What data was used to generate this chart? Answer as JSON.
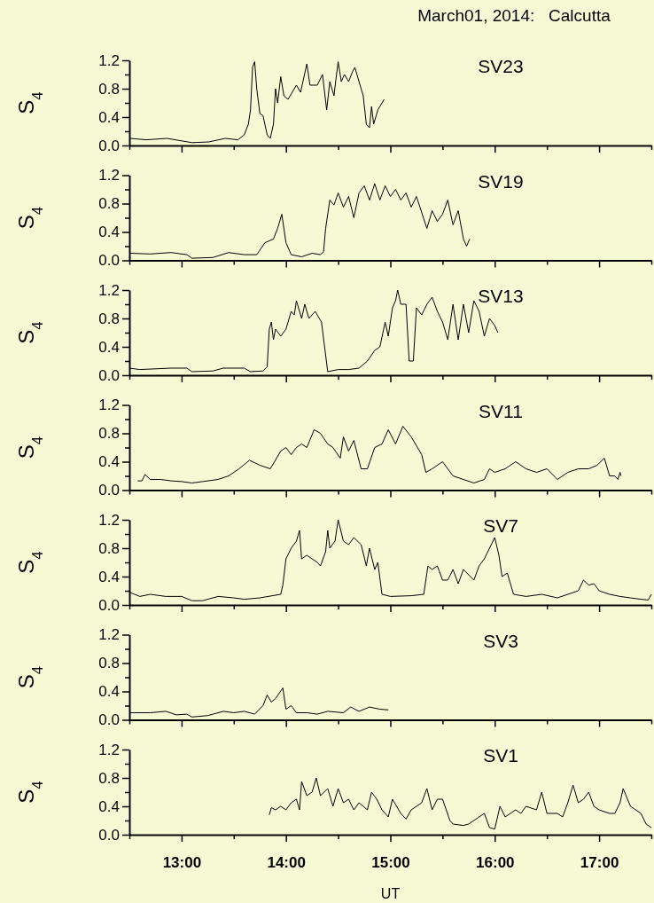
{
  "chart_data": [
    {
      "type": "line",
      "title": "March01, 2014:   Calcutta",
      "ylabel": "S$_{4}$",
      "tick_labels": "y",
      "xlim": [
        12.5,
        17.5
      ],
      "ylim": [
        0,
        1.2
      ],
      "xticks": [
        {
          "value": 12.5,
          "label": null
        },
        {
          "value": 13,
          "label": null
        },
        {
          "value": 13.5,
          "label": null
        },
        {
          "value": 14,
          "label": null
        },
        {
          "value": 14.5,
          "label": null
        },
        {
          "value": 15,
          "label": null
        },
        {
          "value": 15.5,
          "label": null
        },
        {
          "value": 16,
          "label": null
        },
        {
          "value": 16.5,
          "label": null
        },
        {
          "value": 17,
          "label": null
        },
        {
          "value": 17.5,
          "label": null
        }
      ],
      "yticks": [
        {
          "value": 0,
          "label": "0.0"
        },
        {
          "value": 0.2,
          "label": null
        },
        {
          "value": 0.4,
          "label": "0.4"
        },
        {
          "value": 0.6,
          "label": null
        },
        {
          "value": 0.8,
          "label": "0.8"
        },
        {
          "value": 1.0,
          "label": null
        },
        {
          "value": 1.2,
          "label": "1.2"
        }
      ],
      "series": [
        {
          "name": "SV23",
          "color": "#000000",
          "x": [
            12.51,
            12.66,
            12.86,
            13.1,
            13.26,
            13.42,
            13.54,
            13.6,
            13.64,
            13.66,
            13.68,
            13.7,
            13.72,
            13.75,
            13.78,
            13.82,
            13.85,
            13.88,
            13.9,
            13.92,
            13.95,
            13.98,
            14.02,
            14.06,
            14.1,
            14.14,
            14.2,
            14.23,
            14.3,
            14.35,
            14.39,
            14.42,
            14.46,
            14.48,
            14.5,
            14.53,
            14.56,
            14.6,
            14.64,
            14.66,
            14.7,
            14.74,
            14.77,
            14.8,
            14.82,
            14.84,
            14.88,
            14.9,
            14.94
          ],
          "values": [
            0.1,
            0.08,
            0.1,
            0.04,
            0.05,
            0.1,
            0.08,
            0.15,
            0.3,
            0.5,
            1.1,
            1.18,
            0.8,
            0.45,
            0.42,
            0.15,
            0.1,
            0.3,
            0.8,
            0.6,
            0.97,
            0.7,
            0.65,
            0.75,
            0.85,
            0.75,
            1.15,
            0.85,
            0.85,
            1.0,
            0.5,
            0.9,
            0.7,
            0.95,
            1.18,
            0.9,
            1.0,
            0.9,
            1.05,
            1.1,
            0.9,
            0.7,
            0.3,
            0.25,
            0.55,
            0.3,
            0.5,
            0.55,
            0.65
          ]
        }
      ]
    },
    {
      "type": "line",
      "ylabel": "S$_{4}$",
      "tick_labels": "y",
      "xlim": [
        12.5,
        17.5
      ],
      "ylim": [
        0,
        1.2
      ],
      "xticks": [
        {
          "value": 12.5,
          "label": null
        },
        {
          "value": 13,
          "label": null
        },
        {
          "value": 13.5,
          "label": null
        },
        {
          "value": 14,
          "label": null
        },
        {
          "value": 14.5,
          "label": null
        },
        {
          "value": 15,
          "label": null
        },
        {
          "value": 15.5,
          "label": null
        },
        {
          "value": 16,
          "label": null
        },
        {
          "value": 16.5,
          "label": null
        },
        {
          "value": 17,
          "label": null
        },
        {
          "value": 17.5,
          "label": null
        }
      ],
      "yticks": [
        {
          "value": 0,
          "label": "0.0"
        },
        {
          "value": 0.2,
          "label": null
        },
        {
          "value": 0.4,
          "label": "0.4"
        },
        {
          "value": 0.6,
          "label": null
        },
        {
          "value": 0.8,
          "label": "0.8"
        },
        {
          "value": 1.0,
          "label": null
        },
        {
          "value": 1.2,
          "label": "1.2"
        }
      ],
      "series": [
        {
          "name": "SV19",
          "color": "#000000",
          "x": [
            12.51,
            12.7,
            12.9,
            13.05,
            13.1,
            13.3,
            13.45,
            13.6,
            13.72,
            13.8,
            13.88,
            13.92,
            13.96,
            14.0,
            14.05,
            14.15,
            14.25,
            14.33,
            14.36,
            14.38,
            14.42,
            14.46,
            14.5,
            14.55,
            14.6,
            14.65,
            14.7,
            14.75,
            14.8,
            14.85,
            14.9,
            14.95,
            15.0,
            15.05,
            15.1,
            15.15,
            15.2,
            15.25,
            15.35,
            15.4,
            15.45,
            15.5,
            15.55,
            15.6,
            15.65,
            15.7,
            15.73,
            15.76
          ],
          "values": [
            0.1,
            0.09,
            0.11,
            0.08,
            0.03,
            0.04,
            0.11,
            0.08,
            0.08,
            0.25,
            0.3,
            0.45,
            0.65,
            0.25,
            0.08,
            0.05,
            0.1,
            0.08,
            0.12,
            0.45,
            0.85,
            0.78,
            0.95,
            0.75,
            0.9,
            0.6,
            0.95,
            1.05,
            0.85,
            1.08,
            0.85,
            1.05,
            0.9,
            1.0,
            0.85,
            0.95,
            0.75,
            0.9,
            0.45,
            0.7,
            0.55,
            0.65,
            0.85,
            0.5,
            0.7,
            0.3,
            0.2,
            0.3
          ]
        }
      ]
    },
    {
      "type": "line",
      "ylabel": "S$_{4}$",
      "tick_labels": "y",
      "xlim": [
        12.5,
        17.5
      ],
      "ylim": [
        0,
        1.2
      ],
      "xticks": [
        {
          "value": 12.5,
          "label": null
        },
        {
          "value": 13,
          "label": null
        },
        {
          "value": 13.5,
          "label": null
        },
        {
          "value": 14,
          "label": null
        },
        {
          "value": 14.5,
          "label": null
        },
        {
          "value": 15,
          "label": null
        },
        {
          "value": 15.5,
          "label": null
        },
        {
          "value": 16,
          "label": null
        },
        {
          "value": 16.5,
          "label": null
        },
        {
          "value": 17,
          "label": null
        },
        {
          "value": 17.5,
          "label": null
        }
      ],
      "yticks": [
        {
          "value": 0,
          "label": "0.0"
        },
        {
          "value": 0.2,
          "label": null
        },
        {
          "value": 0.4,
          "label": "0.4"
        },
        {
          "value": 0.6,
          "label": null
        },
        {
          "value": 0.8,
          "label": "0.8"
        },
        {
          "value": 1.0,
          "label": null
        },
        {
          "value": 1.2,
          "label": "1.2"
        }
      ],
      "series": [
        {
          "name": "SV13",
          "color": "#000000",
          "x": [
            12.5,
            12.6,
            12.9,
            13.05,
            13.1,
            13.3,
            13.4,
            13.6,
            13.66,
            13.78,
            13.82,
            13.84,
            13.86,
            13.88,
            13.9,
            13.95,
            14.0,
            14.05,
            14.08,
            14.1,
            14.15,
            14.18,
            14.22,
            14.28,
            14.34,
            14.4,
            14.5,
            14.6,
            14.7,
            14.78,
            14.85,
            14.9,
            14.95,
            14.98,
            15.02,
            15.05,
            15.07,
            15.1,
            15.15,
            15.18,
            15.22,
            15.25,
            15.3,
            15.35,
            15.4,
            15.45,
            15.5,
            15.55,
            15.6,
            15.65,
            15.7,
            15.75,
            15.8,
            15.85,
            15.9,
            15.95,
            16.0,
            16.03
          ],
          "values": [
            0.1,
            0.08,
            0.1,
            0.1,
            0.05,
            0.06,
            0.1,
            0.1,
            0.05,
            0.06,
            0.12,
            0.65,
            0.75,
            0.5,
            0.65,
            0.55,
            0.65,
            0.9,
            0.85,
            1.05,
            0.8,
            1.0,
            0.8,
            0.9,
            0.75,
            0.05,
            0.08,
            0.08,
            0.1,
            0.2,
            0.35,
            0.4,
            0.75,
            0.55,
            0.95,
            1.05,
            1.2,
            1.0,
            1.0,
            0.2,
            0.2,
            0.95,
            0.85,
            1.0,
            1.1,
            0.9,
            0.75,
            0.5,
            1.0,
            0.5,
            1.0,
            0.6,
            1.05,
            0.9,
            0.55,
            0.8,
            0.7,
            0.6
          ]
        }
      ]
    },
    {
      "type": "line",
      "ylabel": "S$_{4}$",
      "tick_labels": "y",
      "xlim": [
        12.5,
        17.5
      ],
      "ylim": [
        0,
        1.2
      ],
      "xticks": [
        {
          "value": 12.5,
          "label": null
        },
        {
          "value": 13,
          "label": null
        },
        {
          "value": 13.5,
          "label": null
        },
        {
          "value": 14,
          "label": null
        },
        {
          "value": 14.5,
          "label": null
        },
        {
          "value": 15,
          "label": null
        },
        {
          "value": 15.5,
          "label": null
        },
        {
          "value": 16,
          "label": null
        },
        {
          "value": 16.5,
          "label": null
        },
        {
          "value": 17,
          "label": null
        },
        {
          "value": 17.5,
          "label": null
        }
      ],
      "yticks": [
        {
          "value": 0,
          "label": "0.0"
        },
        {
          "value": 0.2,
          "label": null
        },
        {
          "value": 0.4,
          "label": "0.4"
        },
        {
          "value": 0.6,
          "label": null
        },
        {
          "value": 0.8,
          "label": "0.8"
        },
        {
          "value": 1.0,
          "label": null
        },
        {
          "value": 1.2,
          "label": "1.2"
        }
      ],
      "series": [
        {
          "name": "SV11",
          "color": "#000000",
          "x": [
            12.58,
            12.62,
            12.65,
            12.7,
            12.8,
            12.9,
            13.0,
            13.1,
            13.2,
            13.35,
            13.45,
            13.55,
            13.65,
            13.75,
            13.85,
            13.95,
            14.0,
            14.05,
            14.1,
            14.15,
            14.2,
            14.27,
            14.33,
            14.4,
            14.45,
            14.52,
            14.55,
            14.6,
            14.65,
            14.72,
            14.78,
            14.85,
            14.92,
            14.98,
            15.05,
            15.12,
            15.2,
            15.3,
            15.34,
            15.4,
            15.5,
            15.6,
            15.7,
            15.8,
            15.9,
            15.95,
            16.0,
            16.1,
            16.2,
            16.3,
            16.4,
            16.5,
            16.6,
            16.7,
            16.8,
            16.9,
            16.98,
            17.05,
            17.1,
            17.15,
            17.18,
            17.2,
            17.21
          ],
          "values": [
            0.13,
            0.13,
            0.22,
            0.15,
            0.15,
            0.13,
            0.12,
            0.1,
            0.12,
            0.15,
            0.2,
            0.3,
            0.42,
            0.35,
            0.3,
            0.55,
            0.6,
            0.5,
            0.6,
            0.65,
            0.6,
            0.85,
            0.8,
            0.65,
            0.6,
            0.45,
            0.75,
            0.55,
            0.7,
            0.3,
            0.3,
            0.6,
            0.65,
            0.85,
            0.65,
            0.9,
            0.75,
            0.5,
            0.25,
            0.3,
            0.4,
            0.2,
            0.15,
            0.1,
            0.15,
            0.3,
            0.25,
            0.3,
            0.4,
            0.3,
            0.25,
            0.3,
            0.15,
            0.25,
            0.3,
            0.3,
            0.35,
            0.45,
            0.2,
            0.2,
            0.15,
            0.25,
            0.2
          ]
        }
      ]
    },
    {
      "type": "line",
      "ylabel": "S$_{4}$",
      "tick_labels": "y",
      "xlim": [
        12.5,
        17.5
      ],
      "ylim": [
        0,
        1.2
      ],
      "xticks": [
        {
          "value": 12.5,
          "label": null
        },
        {
          "value": 13,
          "label": null
        },
        {
          "value": 13.5,
          "label": null
        },
        {
          "value": 14,
          "label": null
        },
        {
          "value": 14.5,
          "label": null
        },
        {
          "value": 15,
          "label": null
        },
        {
          "value": 15.5,
          "label": null
        },
        {
          "value": 16,
          "label": null
        },
        {
          "value": 16.5,
          "label": null
        },
        {
          "value": 17,
          "label": null
        },
        {
          "value": 17.5,
          "label": null
        }
      ],
      "yticks": [
        {
          "value": 0,
          "label": "0.0"
        },
        {
          "value": 0.2,
          "label": null
        },
        {
          "value": 0.4,
          "label": "0.4"
        },
        {
          "value": 0.6,
          "label": null
        },
        {
          "value": 0.8,
          "label": "0.8"
        },
        {
          "value": 1.0,
          "label": null
        },
        {
          "value": 1.2,
          "label": "1.2"
        }
      ],
      "series": [
        {
          "name": "SV7",
          "color": "#000000",
          "x": [
            12.5,
            12.6,
            12.7,
            12.85,
            13.0,
            13.1,
            13.2,
            13.35,
            13.5,
            13.6,
            13.75,
            13.95,
            13.97,
            14.0,
            14.05,
            14.1,
            14.13,
            14.15,
            14.2,
            14.3,
            14.33,
            14.38,
            14.4,
            14.42,
            14.47,
            14.5,
            14.55,
            14.6,
            14.65,
            14.72,
            14.77,
            14.8,
            14.85,
            14.88,
            14.92,
            15.0,
            15.2,
            15.32,
            15.36,
            15.4,
            15.45,
            15.5,
            15.55,
            15.6,
            15.65,
            15.7,
            15.8,
            15.85,
            15.9,
            15.95,
            16.0,
            16.04,
            16.07,
            16.12,
            16.18,
            16.3,
            16.45,
            16.6,
            16.8,
            16.85,
            16.9,
            16.95,
            17.0,
            17.1,
            17.2,
            17.3,
            17.4,
            17.47,
            17.5
          ],
          "values": [
            0.18,
            0.12,
            0.15,
            0.12,
            0.12,
            0.06,
            0.06,
            0.12,
            0.1,
            0.08,
            0.1,
            0.15,
            0.28,
            0.65,
            0.8,
            0.9,
            1.05,
            0.65,
            0.7,
            0.6,
            0.55,
            0.75,
            1.05,
            0.8,
            0.9,
            1.2,
            0.9,
            0.85,
            0.95,
            0.85,
            0.55,
            0.8,
            0.5,
            0.6,
            0.15,
            0.12,
            0.13,
            0.15,
            0.55,
            0.5,
            0.55,
            0.35,
            0.35,
            0.5,
            0.3,
            0.5,
            0.35,
            0.55,
            0.65,
            0.8,
            0.95,
            0.7,
            0.4,
            0.45,
            0.15,
            0.12,
            0.15,
            0.1,
            0.2,
            0.35,
            0.28,
            0.3,
            0.2,
            0.15,
            0.12,
            0.1,
            0.08,
            0.07,
            0.15
          ]
        }
      ]
    },
    {
      "type": "line",
      "ylabel": "S$_{4}$",
      "tick_labels": "y",
      "xlim": [
        12.5,
        17.5
      ],
      "ylim": [
        0,
        1.2
      ],
      "xticks": [
        {
          "value": 12.5,
          "label": null
        },
        {
          "value": 13,
          "label": null
        },
        {
          "value": 13.5,
          "label": null
        },
        {
          "value": 14,
          "label": null
        },
        {
          "value": 14.5,
          "label": null
        },
        {
          "value": 15,
          "label": null
        },
        {
          "value": 15.5,
          "label": null
        },
        {
          "value": 16,
          "label": null
        },
        {
          "value": 16.5,
          "label": null
        },
        {
          "value": 17,
          "label": null
        },
        {
          "value": 17.5,
          "label": null
        }
      ],
      "yticks": [
        {
          "value": 0,
          "label": "0.0"
        },
        {
          "value": 0.2,
          "label": null
        },
        {
          "value": 0.4,
          "label": "0.4"
        },
        {
          "value": 0.6,
          "label": null
        },
        {
          "value": 0.8,
          "label": "0.8"
        },
        {
          "value": 1.0,
          "label": null
        },
        {
          "value": 1.2,
          "label": "1.2"
        }
      ],
      "series": [
        {
          "name": "SV3",
          "color": "#000000",
          "x": [
            12.5,
            12.7,
            12.85,
            12.95,
            13.05,
            13.1,
            13.25,
            13.4,
            13.5,
            13.6,
            13.7,
            13.78,
            13.82,
            13.86,
            13.9,
            13.97,
            14.0,
            14.05,
            14.1,
            14.2,
            14.3,
            14.4,
            14.55,
            14.62,
            14.7,
            14.8,
            14.9,
            14.98
          ],
          "values": [
            0.1,
            0.1,
            0.12,
            0.07,
            0.08,
            0.04,
            0.06,
            0.12,
            0.1,
            0.12,
            0.08,
            0.2,
            0.35,
            0.25,
            0.3,
            0.45,
            0.15,
            0.2,
            0.1,
            0.1,
            0.08,
            0.12,
            0.1,
            0.18,
            0.12,
            0.18,
            0.15,
            0.14
          ]
        }
      ]
    },
    {
      "type": "line",
      "ylabel": "S$_{4}$",
      "xlabel": "UT",
      "xlim": [
        12.5,
        17.5
      ],
      "ylim": [
        0,
        1.2
      ],
      "xticks": [
        {
          "value": 12.5,
          "label": null
        },
        {
          "value": 13,
          "label": "13:00"
        },
        {
          "value": 13.5,
          "label": null
        },
        {
          "value": 14,
          "label": "14:00"
        },
        {
          "value": 14.5,
          "label": null
        },
        {
          "value": 15,
          "label": "15:00"
        },
        {
          "value": 15.5,
          "label": null
        },
        {
          "value": 16,
          "label": "16:00"
        },
        {
          "value": 16.5,
          "label": null
        },
        {
          "value": 17,
          "label": "17:00"
        },
        {
          "value": 17.5,
          "label": null
        }
      ],
      "yticks": [
        {
          "value": 0,
          "label": "0.0"
        },
        {
          "value": 0.2,
          "label": null
        },
        {
          "value": 0.4,
          "label": "0.4"
        },
        {
          "value": 0.6,
          "label": null
        },
        {
          "value": 0.8,
          "label": "0.8"
        },
        {
          "value": 1.0,
          "label": null
        },
        {
          "value": 1.2,
          "label": "1.2"
        }
      ],
      "series": [
        {
          "name": "SV1",
          "color": "#000000",
          "x": [
            13.84,
            13.86,
            13.9,
            13.95,
            14.0,
            14.05,
            14.1,
            14.13,
            14.15,
            14.2,
            14.25,
            14.29,
            14.33,
            14.4,
            14.45,
            14.5,
            14.55,
            14.6,
            14.65,
            14.7,
            14.78,
            14.82,
            14.87,
            14.92,
            14.98,
            15.02,
            15.1,
            15.15,
            15.2,
            15.3,
            15.35,
            15.4,
            15.45,
            15.5,
            15.57,
            15.6,
            15.7,
            15.75,
            15.8,
            15.9,
            15.95,
            16.0,
            16.05,
            16.1,
            16.2,
            16.25,
            16.3,
            16.4,
            16.45,
            16.5,
            16.6,
            16.65,
            16.7,
            16.75,
            16.8,
            16.85,
            16.9,
            16.95,
            17.0,
            17.1,
            17.15,
            17.2,
            17.23,
            17.3,
            17.4,
            17.45,
            17.5
          ],
          "values": [
            0.28,
            0.38,
            0.35,
            0.4,
            0.35,
            0.45,
            0.5,
            0.35,
            0.75,
            0.55,
            0.6,
            0.8,
            0.55,
            0.65,
            0.4,
            0.65,
            0.45,
            0.5,
            0.35,
            0.45,
            0.35,
            0.6,
            0.5,
            0.35,
            0.25,
            0.5,
            0.3,
            0.22,
            0.35,
            0.45,
            0.65,
            0.35,
            0.5,
            0.5,
            0.2,
            0.15,
            0.13,
            0.15,
            0.2,
            0.3,
            0.1,
            0.08,
            0.4,
            0.25,
            0.35,
            0.3,
            0.4,
            0.35,
            0.6,
            0.3,
            0.3,
            0.25,
            0.45,
            0.7,
            0.45,
            0.5,
            0.6,
            0.4,
            0.35,
            0.3,
            0.3,
            0.45,
            0.65,
            0.4,
            0.3,
            0.15,
            0.1
          ]
        }
      ]
    }
  ]
}
